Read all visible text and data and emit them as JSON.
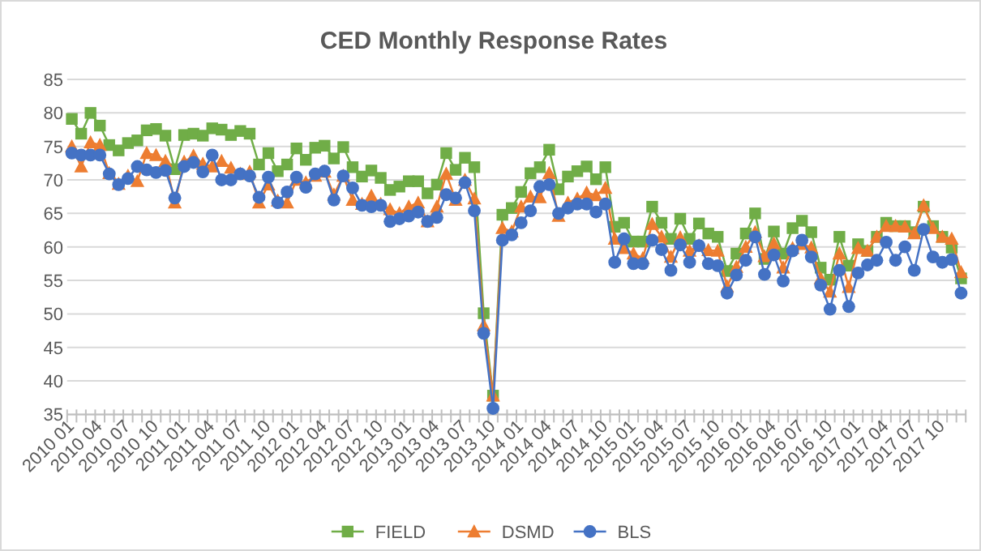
{
  "chart_data": {
    "type": "line",
    "title": "CED Monthly Response Rates",
    "categories": [
      "2010 01",
      null,
      null,
      "2010 04",
      null,
      null,
      "2010 07",
      null,
      null,
      "2010 10",
      null,
      null,
      "2011 01",
      null,
      null,
      "2011 04",
      null,
      null,
      "2011 07",
      null,
      null,
      "2011 10",
      null,
      null,
      "2012 01",
      null,
      null,
      "2012 04",
      null,
      null,
      "2012 07",
      null,
      null,
      "2012 10",
      null,
      null,
      "2013 01",
      null,
      null,
      "2013 04",
      null,
      null,
      "2013 07",
      null,
      null,
      "2013 10",
      null,
      null,
      "2014 01",
      null,
      null,
      "2014 04",
      null,
      null,
      "2014 07",
      null,
      null,
      "2014 10",
      null,
      null,
      "2015 01",
      null,
      null,
      "2015 04",
      null,
      null,
      "2015 07",
      null,
      null,
      "2015 10",
      null,
      null,
      "2016 01",
      null,
      null,
      "2016 04",
      null,
      null,
      "2016 07",
      null,
      null,
      "2016 10",
      null,
      null,
      "2017 01",
      null,
      null,
      "2017 04",
      null,
      null,
      "2017 07",
      null,
      null,
      "2017 10",
      null,
      null
    ],
    "series": [
      {
        "name": "FIELD",
        "color": "#70ad47",
        "marker": "square",
        "values": [
          79.1,
          76.9,
          80.0,
          78.1,
          75.2,
          74.4,
          75.5,
          75.9,
          77.4,
          77.6,
          76.6,
          71.6,
          76.7,
          76.9,
          76.6,
          77.7,
          77.5,
          76.7,
          77.3,
          76.9,
          72.3,
          74.0,
          71.3,
          72.3,
          74.7,
          73.0,
          74.8,
          75.1,
          73.2,
          74.9,
          71.9,
          70.5,
          71.4,
          70.3,
          68.5,
          69.0,
          69.8,
          69.8,
          68.0,
          69.3,
          74.0,
          71.5,
          73.3,
          71.9,
          50.1,
          37.8,
          64.8,
          65.8,
          68.2,
          71.0,
          71.9,
          74.5,
          68.6,
          70.5,
          71.3,
          72.0,
          70.1,
          71.9,
          63.0,
          63.6,
          60.8,
          60.8,
          66.0,
          63.6,
          61.2,
          64.2,
          61.2,
          63.5,
          62.0,
          61.5,
          56.4,
          59.0,
          62.0,
          65.0,
          58.2,
          62.3,
          59.0,
          62.8,
          63.9,
          62.2,
          56.9,
          55.1,
          61.5,
          57.2,
          60.4,
          59.4,
          61.5,
          63.6,
          63.1,
          63.1,
          62.2,
          66.0,
          63.1,
          61.5,
          59.9,
          55.3
        ]
      },
      {
        "name": "DSMD",
        "color": "#ed7d31",
        "marker": "triangle",
        "values": [
          75.0,
          72.0,
          75.6,
          75.2,
          71.0,
          69.4,
          70.6,
          69.8,
          74.0,
          73.7,
          72.8,
          66.6,
          72.7,
          73.6,
          72.4,
          72.0,
          72.8,
          71.8,
          70.9,
          71.2,
          66.6,
          69.3,
          66.9,
          66.6,
          70.0,
          69.6,
          70.6,
          71.2,
          67.8,
          70.6,
          67.0,
          66.4,
          67.6,
          66.4,
          65.6,
          65.0,
          66.0,
          66.6,
          63.8,
          66.0,
          70.9,
          67.0,
          70.0,
          67.2,
          48.3,
          37.8,
          62.8,
          62.3,
          66.0,
          67.5,
          67.4,
          71.0,
          64.6,
          66.6,
          67.2,
          68.1,
          67.7,
          68.8,
          61.2,
          59.8,
          59.0,
          58.3,
          63.4,
          61.5,
          58.5,
          61.4,
          59.4,
          60.2,
          59.5,
          59.4,
          54.1,
          57.0,
          60.0,
          62.2,
          58.6,
          60.5,
          56.9,
          59.8,
          60.4,
          59.9,
          55.3,
          53.3,
          59.0,
          54.0,
          59.8,
          59.4,
          61.5,
          63.1,
          63.1,
          63.0,
          62.0,
          66.2,
          62.8,
          61.5,
          61.2,
          56.2
        ]
      },
      {
        "name": "BLS",
        "color": "#4472c4",
        "marker": "circle",
        "values": [
          74.0,
          73.7,
          73.7,
          73.7,
          70.9,
          69.3,
          70.2,
          72.0,
          71.5,
          71.1,
          71.4,
          67.3,
          72.0,
          72.6,
          71.2,
          73.7,
          70.0,
          70.0,
          70.9,
          70.6,
          67.4,
          70.4,
          66.6,
          68.2,
          70.4,
          68.9,
          70.9,
          71.3,
          67.0,
          70.6,
          68.8,
          66.2,
          66.0,
          66.2,
          63.8,
          64.2,
          64.6,
          65.2,
          63.8,
          64.4,
          67.8,
          67.3,
          69.6,
          65.4,
          47.1,
          35.9,
          61.0,
          61.8,
          63.6,
          65.4,
          69.0,
          69.3,
          65.0,
          65.8,
          66.4,
          66.4,
          65.2,
          66.4,
          57.7,
          61.2,
          57.5,
          57.5,
          61.0,
          59.6,
          56.5,
          60.3,
          57.7,
          60.2,
          57.5,
          57.2,
          53.1,
          55.8,
          58.0,
          61.5,
          55.9,
          58.8,
          54.9,
          59.4,
          61.0,
          58.5,
          54.3,
          50.7,
          56.5,
          51.1,
          56.1,
          57.3,
          58.0,
          60.7,
          58.0,
          60.0,
          56.5,
          62.6,
          58.5,
          57.7,
          58.1,
          53.1
        ]
      }
    ],
    "ylim": [
      35,
      85
    ],
    "yticks": [
      35,
      40,
      45,
      50,
      55,
      60,
      65,
      70,
      75,
      80,
      85
    ],
    "grid": "y",
    "legend": "bottom",
    "line_style": "solid"
  }
}
